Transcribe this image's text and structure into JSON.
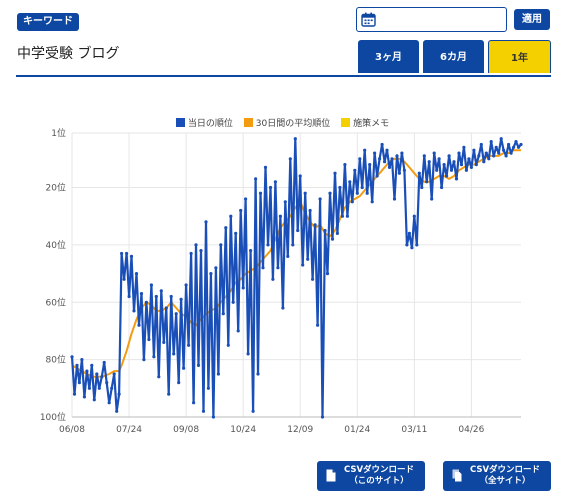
{
  "header": {
    "keyword_badge": "キーワード",
    "title": "中学受験 ブログ",
    "date_value": "",
    "apply_label": "適用",
    "tabs": [
      {
        "label": "3ヶ月",
        "active": false
      },
      {
        "label": "6カ月",
        "active": false
      },
      {
        "label": "1年",
        "active": true
      }
    ]
  },
  "downloads": {
    "this_site_line1": "CSVダウンロード",
    "this_site_line2": "（このサイト）",
    "all_sites_line1": "CSVダウンロード",
    "all_sites_line2": "（全サイト）"
  },
  "colors": {
    "brand": "#0d47a1",
    "rank_line": "#1a4fb8",
    "avg_line": "#f39c12",
    "memo": "#f5d000",
    "grid": "#e6e6e6"
  },
  "icons": {
    "date": "calendar-icon",
    "download_this": "file-icon",
    "download_all": "files-icon"
  },
  "chart_data": {
    "type": "line",
    "title": "",
    "xlabel": "",
    "ylabel": "",
    "legend_position": "top-center",
    "y_reversed": true,
    "ylim": [
      1,
      100
    ],
    "y_ticks": [
      1,
      20,
      40,
      60,
      80,
      100
    ],
    "y_tick_labels": [
      "1位",
      "20位",
      "40位",
      "60位",
      "80位",
      "100位"
    ],
    "x_tick_labels": [
      "06/08",
      "07/24",
      "09/08",
      "10/24",
      "12/09",
      "01/24",
      "03/11",
      "04/26"
    ],
    "x_tick_days": [
      0,
      46,
      92,
      138,
      184,
      230,
      276,
      322
    ],
    "x_max_day": 362,
    "grid": true,
    "series": [
      {
        "name": "当日の順位",
        "color": "#1a4fb8",
        "points": [
          [
            0,
            79
          ],
          [
            2,
            92
          ],
          [
            4,
            82
          ],
          [
            6,
            88
          ],
          [
            8,
            80
          ],
          [
            10,
            93
          ],
          [
            12,
            84
          ],
          [
            14,
            90
          ],
          [
            16,
            82
          ],
          [
            18,
            94
          ],
          [
            20,
            85
          ],
          [
            22,
            90
          ],
          [
            24,
            86
          ],
          [
            26,
            81
          ],
          [
            28,
            88
          ],
          [
            30,
            95
          ],
          [
            32,
            90
          ],
          [
            34,
            85
          ],
          [
            36,
            98
          ],
          [
            38,
            92
          ],
          [
            40,
            43
          ],
          [
            42,
            52
          ],
          [
            44,
            43
          ],
          [
            46,
            58
          ],
          [
            48,
            44
          ],
          [
            50,
            63
          ],
          [
            52,
            50
          ],
          [
            54,
            68
          ],
          [
            56,
            57
          ],
          [
            58,
            80
          ],
          [
            60,
            60
          ],
          [
            62,
            73
          ],
          [
            64,
            54
          ],
          [
            66,
            79
          ],
          [
            68,
            58
          ],
          [
            70,
            86
          ],
          [
            72,
            56
          ],
          [
            74,
            74
          ],
          [
            76,
            62
          ],
          [
            78,
            92
          ],
          [
            80,
            58
          ],
          [
            82,
            78
          ],
          [
            84,
            64
          ],
          [
            86,
            88
          ],
          [
            88,
            59
          ],
          [
            90,
            83
          ],
          [
            92,
            54
          ],
          [
            94,
            75
          ],
          [
            96,
            43
          ],
          [
            98,
            95
          ],
          [
            100,
            40
          ],
          [
            102,
            82
          ],
          [
            104,
            42
          ],
          [
            106,
            98
          ],
          [
            108,
            32
          ],
          [
            110,
            90
          ],
          [
            112,
            50
          ],
          [
            114,
            100
          ],
          [
            116,
            48
          ],
          [
            118,
            85
          ],
          [
            120,
            40
          ],
          [
            122,
            64
          ],
          [
            124,
            34
          ],
          [
            126,
            75
          ],
          [
            128,
            30
          ],
          [
            130,
            60
          ],
          [
            132,
            36
          ],
          [
            134,
            70
          ],
          [
            136,
            28
          ],
          [
            138,
            55
          ],
          [
            140,
            24
          ],
          [
            142,
            78
          ],
          [
            144,
            42
          ],
          [
            146,
            98
          ],
          [
            148,
            17
          ],
          [
            150,
            85
          ],
          [
            152,
            22
          ],
          [
            154,
            48
          ],
          [
            156,
            13
          ],
          [
            158,
            40
          ],
          [
            160,
            20
          ],
          [
            162,
            52
          ],
          [
            164,
            18
          ],
          [
            166,
            48
          ],
          [
            168,
            30
          ],
          [
            170,
            62
          ],
          [
            172,
            25
          ],
          [
            174,
            44
          ],
          [
            176,
            10
          ],
          [
            178,
            40
          ],
          [
            180,
            3
          ],
          [
            182,
            35
          ],
          [
            184,
            16
          ],
          [
            186,
            47
          ],
          [
            188,
            22
          ],
          [
            190,
            45
          ],
          [
            192,
            28
          ],
          [
            194,
            52
          ],
          [
            196,
            33
          ],
          [
            198,
            68
          ],
          [
            200,
            24
          ],
          [
            202,
            100
          ],
          [
            204,
            35
          ],
          [
            206,
            50
          ],
          [
            208,
            22
          ],
          [
            210,
            38
          ],
          [
            212,
            15
          ],
          [
            214,
            36
          ],
          [
            216,
            20
          ],
          [
            218,
            30
          ],
          [
            220,
            12
          ],
          [
            222,
            30
          ],
          [
            224,
            18
          ],
          [
            226,
            25
          ],
          [
            228,
            14
          ],
          [
            230,
            22
          ],
          [
            232,
            10
          ],
          [
            234,
            20
          ],
          [
            236,
            7
          ],
          [
            238,
            22
          ],
          [
            240,
            12
          ],
          [
            242,
            25
          ],
          [
            244,
            8
          ],
          [
            246,
            16
          ],
          [
            248,
            10
          ],
          [
            250,
            5
          ],
          [
            252,
            11
          ],
          [
            254,
            7
          ],
          [
            256,
            13
          ],
          [
            258,
            10
          ],
          [
            260,
            24
          ],
          [
            262,
            9
          ],
          [
            264,
            15
          ],
          [
            266,
            8
          ],
          [
            268,
            14
          ],
          [
            270,
            40
          ],
          [
            272,
            36
          ],
          [
            274,
            41
          ],
          [
            276,
            30
          ],
          [
            278,
            40
          ],
          [
            280,
            15
          ],
          [
            282,
            20
          ],
          [
            284,
            9
          ],
          [
            286,
            18
          ],
          [
            288,
            11
          ],
          [
            290,
            24
          ],
          [
            292,
            8
          ],
          [
            294,
            14
          ],
          [
            296,
            10
          ],
          [
            298,
            20
          ],
          [
            300,
            12
          ],
          [
            302,
            16
          ],
          [
            304,
            9
          ],
          [
            306,
            14
          ],
          [
            308,
            11
          ],
          [
            310,
            17
          ],
          [
            312,
            8
          ],
          [
            314,
            12
          ],
          [
            316,
            6
          ],
          [
            318,
            14
          ],
          [
            320,
            10
          ],
          [
            322,
            13
          ],
          [
            324,
            7
          ],
          [
            326,
            12
          ],
          [
            328,
            9
          ],
          [
            330,
            5
          ],
          [
            332,
            11
          ],
          [
            334,
            8
          ],
          [
            336,
            10
          ],
          [
            338,
            4
          ],
          [
            340,
            9
          ],
          [
            342,
            6
          ],
          [
            344,
            8
          ],
          [
            346,
            3
          ],
          [
            348,
            7
          ],
          [
            350,
            9
          ],
          [
            352,
            5
          ],
          [
            354,
            8
          ],
          [
            356,
            6
          ],
          [
            358,
            4
          ],
          [
            360,
            6
          ],
          [
            362,
            5
          ]
        ]
      },
      {
        "name": "30日間の平均順位",
        "color": "#f39c12",
        "points": [
          [
            0,
            82
          ],
          [
            8,
            84
          ],
          [
            16,
            86
          ],
          [
            24,
            86
          ],
          [
            30,
            85
          ],
          [
            34,
            84
          ],
          [
            36,
            84
          ],
          [
            38,
            84
          ],
          [
            40,
            82
          ],
          [
            44,
            77
          ],
          [
            48,
            71
          ],
          [
            52,
            66
          ],
          [
            56,
            62
          ],
          [
            60,
            60
          ],
          [
            64,
            61
          ],
          [
            68,
            63
          ],
          [
            72,
            63
          ],
          [
            76,
            62
          ],
          [
            80,
            60
          ],
          [
            84,
            62
          ],
          [
            88,
            64
          ],
          [
            92,
            65
          ],
          [
            96,
            67
          ],
          [
            100,
            68
          ],
          [
            104,
            66
          ],
          [
            108,
            64
          ],
          [
            112,
            63
          ],
          [
            116,
            62
          ],
          [
            120,
            60
          ],
          [
            124,
            58
          ],
          [
            128,
            56
          ],
          [
            132,
            53
          ],
          [
            136,
            52
          ],
          [
            140,
            50
          ],
          [
            144,
            49
          ],
          [
            148,
            48
          ],
          [
            152,
            46
          ],
          [
            156,
            44
          ],
          [
            160,
            42
          ],
          [
            164,
            38
          ],
          [
            168,
            34
          ],
          [
            172,
            32
          ],
          [
            176,
            30
          ],
          [
            180,
            27
          ],
          [
            184,
            25
          ],
          [
            188,
            29
          ],
          [
            192,
            32
          ],
          [
            196,
            34
          ],
          [
            200,
            33
          ],
          [
            204,
            36
          ],
          [
            208,
            37
          ],
          [
            212,
            35
          ],
          [
            216,
            31
          ],
          [
            220,
            27
          ],
          [
            224,
            25
          ],
          [
            228,
            24
          ],
          [
            232,
            23
          ],
          [
            236,
            21
          ],
          [
            240,
            19
          ],
          [
            244,
            17
          ],
          [
            248,
            15
          ],
          [
            252,
            13
          ],
          [
            256,
            11
          ],
          [
            260,
            10
          ],
          [
            264,
            10
          ],
          [
            268,
            11
          ],
          [
            272,
            13
          ],
          [
            276,
            15
          ],
          [
            280,
            17
          ],
          [
            284,
            18
          ],
          [
            288,
            18
          ],
          [
            292,
            17
          ],
          [
            296,
            16
          ],
          [
            300,
            16
          ],
          [
            304,
            17
          ],
          [
            308,
            16
          ],
          [
            312,
            14
          ],
          [
            316,
            13
          ],
          [
            320,
            12
          ],
          [
            324,
            12
          ],
          [
            328,
            11
          ],
          [
            332,
            10
          ],
          [
            336,
            9
          ],
          [
            340,
            9
          ],
          [
            344,
            9
          ],
          [
            348,
            8
          ],
          [
            352,
            8
          ],
          [
            356,
            7
          ],
          [
            360,
            7
          ],
          [
            362,
            7
          ]
        ]
      },
      {
        "name": "施策メモ",
        "color": "#f5d000",
        "points": []
      }
    ]
  }
}
